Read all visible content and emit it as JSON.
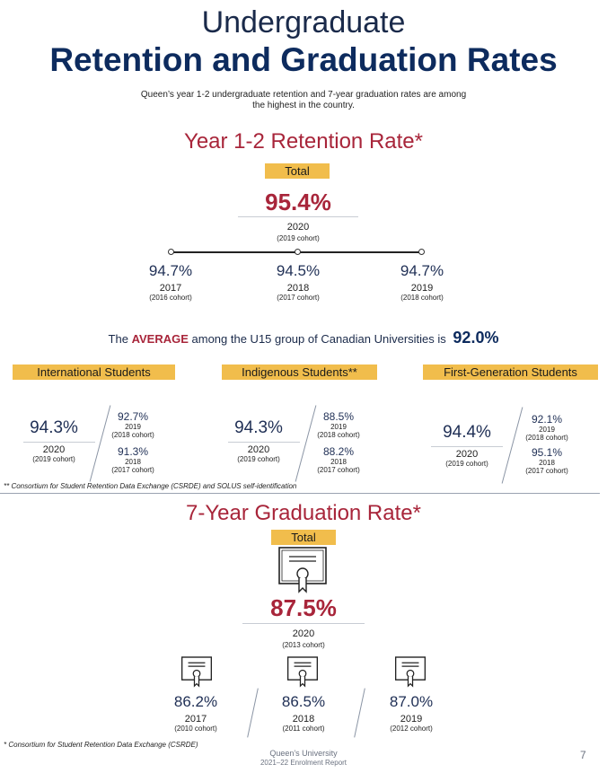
{
  "header": {
    "title_line1": "Undergraduate",
    "title_line2": "Retention and Graduation Rates",
    "intro_line1": "Queen’s year 1-2 undergraduate retention and 7-year graduation rates are among",
    "intro_line2": "the highest in the country."
  },
  "retention": {
    "heading": "Year 1-2 Retention Rate*",
    "total_label": "Total",
    "total_value": "95.4%",
    "total_year": "2020",
    "total_cohort": "(2019 cohort)",
    "history": [
      {
        "value": "94.7%",
        "year": "2017",
        "cohort": "(2016 cohort)"
      },
      {
        "value": "94.5%",
        "year": "2018",
        "cohort": "(2017 cohort)"
      },
      {
        "value": "94.7%",
        "year": "2019",
        "cohort": "(2018 cohort)"
      }
    ],
    "average_prefix": "The",
    "average_keyword": "AVERAGE",
    "average_suffix": "among the U15 group of Canadian Universities is",
    "average_value": "92.0%"
  },
  "groups": [
    {
      "label": "International Students",
      "main_value": "94.3%",
      "main_year": "2020",
      "main_cohort": "(2019 cohort)",
      "side": [
        {
          "value": "92.7%",
          "year": "2019",
          "cohort": "(2018 cohort)"
        },
        {
          "value": "91.3%",
          "year": "2018",
          "cohort": "(2017 cohort)"
        }
      ]
    },
    {
      "label": "Indigenous Students**",
      "main_value": "94.3%",
      "main_year": "2020",
      "main_cohort": "(2019 cohort)",
      "side": [
        {
          "value": "88.5%",
          "year": "2019",
          "cohort": "(2018 cohort)"
        },
        {
          "value": "88.2%",
          "year": "2018",
          "cohort": "(2017 cohort)"
        }
      ]
    },
    {
      "label": "First-Generation Students",
      "main_value": "94.4%",
      "main_year": "2020",
      "main_cohort": "(2019 cohort)",
      "side": [
        {
          "value": "92.1%",
          "year": "2019",
          "cohort": "(2018 cohort)"
        },
        {
          "value": "95.1%",
          "year": "2018",
          "cohort": "(2017 cohort)"
        }
      ]
    }
  ],
  "footnote_groups": "** Consortium for Student Retention Data Exchange (CSRDE) and SOLUS self-identification",
  "graduation": {
    "heading": "7-Year Graduation Rate*",
    "total_label": "Total",
    "total_value": "87.5%",
    "total_year": "2020",
    "total_cohort": "(2013 cohort)",
    "history": [
      {
        "value": "86.2%",
        "year": "2017",
        "cohort": "(2010 cohort)"
      },
      {
        "value": "86.5%",
        "year": "2018",
        "cohort": "(2011 cohort)"
      },
      {
        "value": "87.0%",
        "year": "2019",
        "cohort": "(2012 cohort)"
      }
    ]
  },
  "footer": {
    "footnote": "* Consortium for Student Retention Data Exchange (CSRDE)",
    "org": "Queen’s University",
    "report": "2021–22 Enrolment Report",
    "page_number": "7"
  },
  "colors": {
    "navy": "#0d2b5e",
    "red": "#a8253a",
    "gold": "#f1bd4c"
  }
}
